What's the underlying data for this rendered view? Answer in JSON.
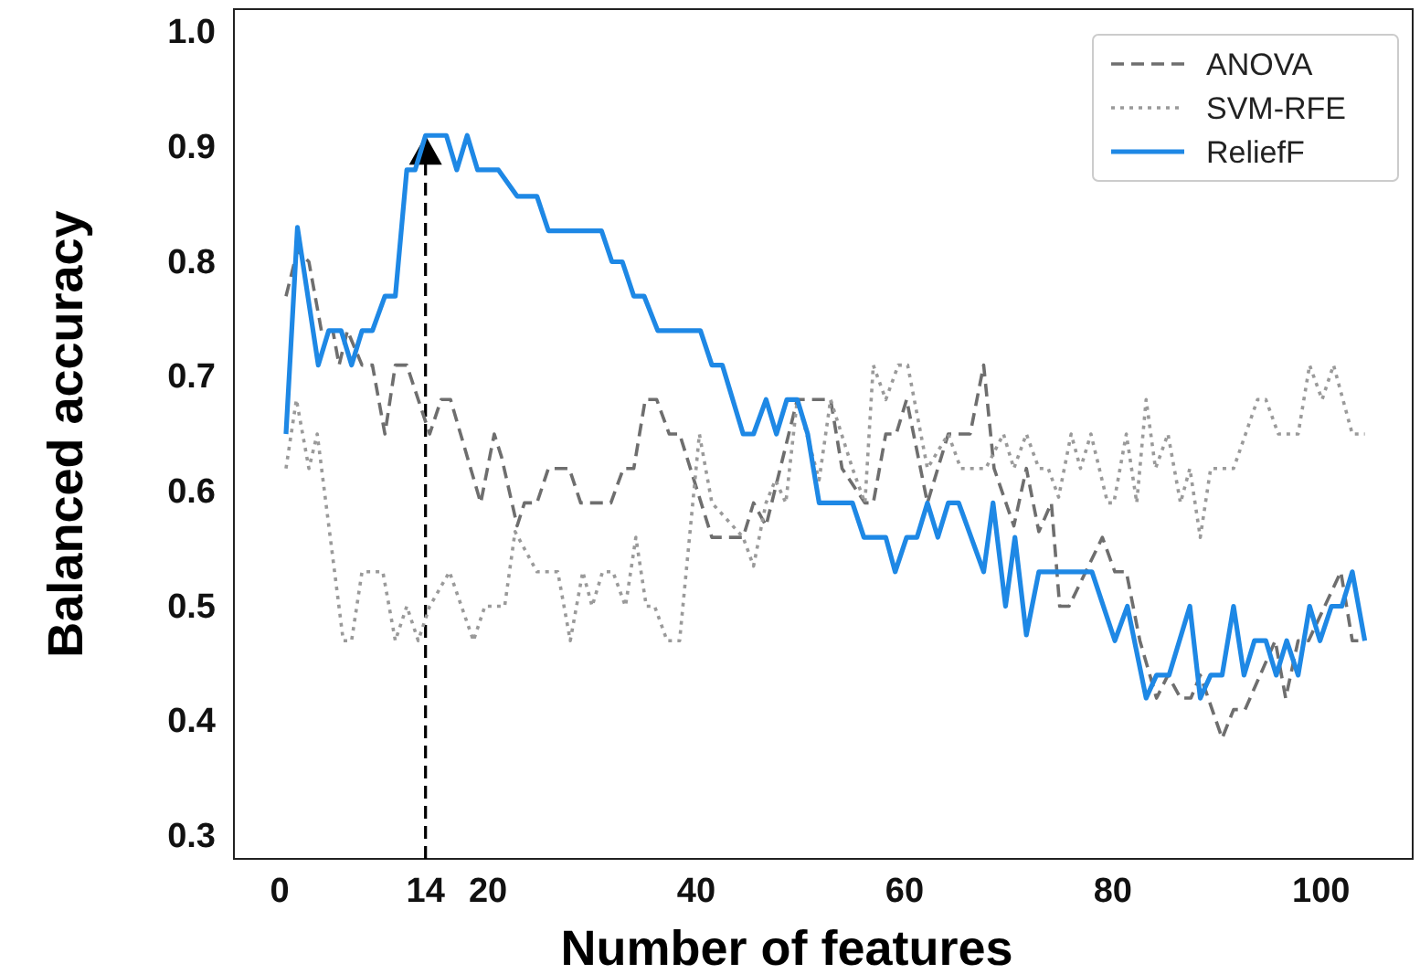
{
  "chart_data": {
    "type": "line",
    "xlabel": "Number of features",
    "ylabel": "Balanced accuracy",
    "xlim": [
      -4.4,
      108.8
    ],
    "ylim": [
      0.28,
      1.02
    ],
    "xticks": [
      0,
      14,
      20,
      40,
      60,
      80,
      100
    ],
    "yticks": [
      {
        "value": 0.3,
        "label": "0.3"
      },
      {
        "value": 0.4,
        "label": "0.4"
      },
      {
        "value": 0.5,
        "label": "0.5"
      },
      {
        "value": 0.6,
        "label": "0.6"
      },
      {
        "value": 0.7,
        "label": "0.7"
      },
      {
        "value": 0.8,
        "label": "0.8"
      },
      {
        "value": 0.9,
        "label": "0.9"
      },
      {
        "value": 1.0,
        "label": "1.0"
      }
    ],
    "grid": false,
    "legend": "top right",
    "ref_lines": [
      {
        "axis": "x",
        "value": 14,
        "color": "#000000",
        "line_style": "dashed"
      }
    ],
    "series": [
      {
        "name": "ANOVA",
        "color": "#6e6e6e",
        "line_style": "dashed",
        "x": [
          0.6,
          1.7,
          2.8,
          4,
          5.1,
          5.7,
          6.5,
          7.9,
          8.9,
          10.1,
          11.1,
          12.2,
          14.4,
          15.5,
          16.4,
          19.3,
          20.6,
          21.3,
          22.8,
          23.5,
          24.7,
          25.8,
          27.8,
          28.9,
          31.8,
          33,
          34,
          35.1,
          36.2,
          37.4,
          38.4,
          41.5,
          44.5,
          45.5,
          46.7,
          49.7,
          52.9,
          54,
          56.2,
          57,
          58.2,
          59.2,
          60.2,
          62.2,
          64.2,
          66.3,
          67.6,
          68.6,
          70.5,
          71.7,
          72.9,
          74.1,
          74.9,
          75.8,
          79,
          80.2,
          81.3,
          82.6,
          84.2,
          85.3,
          86.5,
          87.5,
          88.4,
          90.5,
          91.6,
          92.7,
          95.6,
          96.6,
          97.8,
          98.8,
          101.9,
          103,
          104.2
        ],
        "values": [
          0.77,
          0.81,
          0.8,
          0.74,
          0.74,
          0.71,
          0.74,
          0.71,
          0.71,
          0.65,
          0.71,
          0.71,
          0.65,
          0.68,
          0.68,
          0.59,
          0.65,
          0.63,
          0.57,
          0.59,
          0.59,
          0.62,
          0.62,
          0.59,
          0.59,
          0.62,
          0.62,
          0.68,
          0.68,
          0.65,
          0.65,
          0.56,
          0.56,
          0.59,
          0.57,
          0.68,
          0.68,
          0.62,
          0.59,
          0.59,
          0.65,
          0.65,
          0.68,
          0.59,
          0.65,
          0.65,
          0.71,
          0.62,
          0.57,
          0.62,
          0.565,
          0.59,
          0.5,
          0.5,
          0.56,
          0.53,
          0.53,
          0.47,
          0.42,
          0.44,
          0.42,
          0.42,
          0.44,
          0.385,
          0.41,
          0.41,
          0.47,
          0.42,
          0.47,
          0.47,
          0.53,
          0.47,
          0.47
        ]
      },
      {
        "name": "SVM-RFE",
        "color": "#9a9a9a",
        "line_style": "dotted",
        "x": [
          0.6,
          1.6,
          2.8,
          3.6,
          6.1,
          6.9,
          7.9,
          9.9,
          11.1,
          12.2,
          13.3,
          14.4,
          16.3,
          18.6,
          19.7,
          21.6,
          22.6,
          24.7,
          26.7,
          27.9,
          29.1,
          30,
          31,
          32,
          33.2,
          34.2,
          35.2,
          36,
          37.2,
          38.4,
          40.3,
          41.5,
          44.5,
          45.5,
          46.7,
          47.6,
          48.6,
          49.7,
          51.8,
          52.9,
          55,
          56.2,
          57,
          58.2,
          59.4,
          60.3,
          62.2,
          64.2,
          65.4,
          67.8,
          69.5,
          70.5,
          71.7,
          72.9,
          73.8,
          74.8,
          76,
          76.9,
          77.9,
          79.5,
          80.1,
          81.3,
          82.3,
          83.2,
          84.1,
          85.3,
          86.5,
          87.4,
          88.4,
          89.4,
          91.6,
          93.9,
          94.7,
          95.9,
          97.8,
          98.9,
          100.1,
          101.2,
          103,
          104.2
        ],
        "values": [
          0.62,
          0.68,
          0.62,
          0.65,
          0.47,
          0.47,
          0.53,
          0.53,
          0.47,
          0.5,
          0.47,
          0.5,
          0.53,
          0.47,
          0.5,
          0.5,
          0.565,
          0.53,
          0.53,
          0.47,
          0.53,
          0.5,
          0.53,
          0.53,
          0.5,
          0.56,
          0.5,
          0.5,
          0.47,
          0.47,
          0.65,
          0.59,
          0.56,
          0.535,
          0.59,
          0.61,
          0.59,
          0.68,
          0.61,
          0.68,
          0.62,
          0.59,
          0.71,
          0.68,
          0.71,
          0.71,
          0.62,
          0.65,
          0.62,
          0.62,
          0.65,
          0.62,
          0.65,
          0.62,
          0.62,
          0.595,
          0.65,
          0.62,
          0.65,
          0.59,
          0.59,
          0.65,
          0.59,
          0.68,
          0.62,
          0.65,
          0.59,
          0.62,
          0.56,
          0.62,
          0.62,
          0.68,
          0.68,
          0.65,
          0.65,
          0.71,
          0.68,
          0.71,
          0.65,
          0.65
        ]
      },
      {
        "name": "ReliefF",
        "color": "#1e88e5",
        "line_style": "solid",
        "x": [
          0.6,
          1.7,
          3.7,
          4.7,
          5.9,
          6.9,
          7.9,
          8.9,
          10.1,
          11.1,
          12.2,
          13,
          14,
          16,
          17,
          18,
          19,
          21,
          22.8,
          24.7,
          25.8,
          30.9,
          31.9,
          32.9,
          34,
          35,
          36.3,
          40.4,
          41.5,
          42.5,
          44.5,
          45.5,
          46.7,
          47.7,
          48.7,
          49.7,
          50.7,
          51.8,
          55,
          56.1,
          58.2,
          59.1,
          60.2,
          61.2,
          62.2,
          63.2,
          64.2,
          65.2,
          67.6,
          68.5,
          69.7,
          70.6,
          71.7,
          72.9,
          78,
          80.2,
          81.4,
          83.2,
          84.2,
          85.4,
          87.4,
          88.4,
          89.4,
          90.5,
          91.6,
          92.6,
          93.6,
          94.7,
          95.7,
          96.7,
          97.8,
          98.9,
          99.9,
          101,
          102,
          103,
          104.2
        ],
        "values": [
          0.65,
          0.83,
          0.71,
          0.74,
          0.74,
          0.71,
          0.74,
          0.74,
          0.77,
          0.77,
          0.88,
          0.88,
          0.91,
          0.91,
          0.88,
          0.91,
          0.88,
          0.88,
          0.857,
          0.857,
          0.827,
          0.827,
          0.8,
          0.8,
          0.77,
          0.77,
          0.74,
          0.74,
          0.71,
          0.71,
          0.65,
          0.65,
          0.68,
          0.65,
          0.68,
          0.68,
          0.65,
          0.59,
          0.59,
          0.56,
          0.56,
          0.53,
          0.56,
          0.56,
          0.59,
          0.56,
          0.59,
          0.59,
          0.53,
          0.59,
          0.5,
          0.56,
          0.475,
          0.53,
          0.53,
          0.47,
          0.5,
          0.42,
          0.44,
          0.44,
          0.5,
          0.42,
          0.44,
          0.44,
          0.5,
          0.44,
          0.47,
          0.47,
          0.44,
          0.47,
          0.44,
          0.5,
          0.47,
          0.5,
          0.5,
          0.53,
          0.47
        ]
      }
    ]
  }
}
